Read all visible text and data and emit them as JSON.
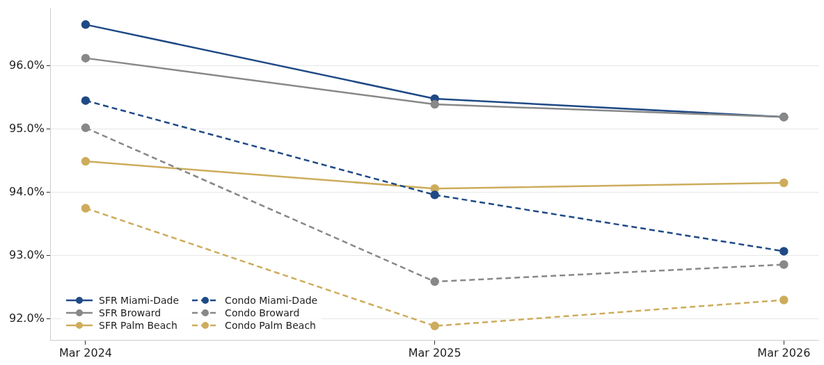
{
  "chart_data": {
    "type": "line",
    "categories": [
      "Mar 2024",
      "Mar 2025",
      "Mar 2026"
    ],
    "series": [
      {
        "name": "SFR Miami-Dade",
        "color": "#1f4a85",
        "line_style": "solid",
        "values": [
          96.65,
          95.48,
          95.19
        ]
      },
      {
        "name": "SFR Broward",
        "color": "#888888",
        "line_style": "solid",
        "values": [
          96.12,
          95.39,
          95.19
        ]
      },
      {
        "name": "SFR Palm Beach",
        "color": "#cdac5c",
        "line_style": "solid",
        "values": [
          94.49,
          94.06,
          94.15
        ]
      },
      {
        "name": "Condo Miami-Dade",
        "color": "#1f4a85",
        "line_style": "dashed",
        "values": [
          95.45,
          93.96,
          93.07
        ]
      },
      {
        "name": "Condo Broward",
        "color": "#888888",
        "line_style": "dashed",
        "values": [
          95.02,
          92.59,
          92.86
        ]
      },
      {
        "name": "Condo Palm Beach",
        "color": "#cdac5c",
        "line_style": "dashed",
        "values": [
          93.75,
          91.89,
          92.3
        ]
      }
    ],
    "ylim": [
      91.66,
      96.9
    ],
    "yticks": [
      {
        "value": 92,
        "label": "92.0%"
      },
      {
        "value": 93,
        "label": "93.0%"
      },
      {
        "value": 94,
        "label": "94.0%"
      },
      {
        "value": 95,
        "label": "95.0%"
      },
      {
        "value": 96,
        "label": "96.0%"
      }
    ],
    "grid": "y",
    "legend": "bottom left",
    "marker": "circle"
  }
}
